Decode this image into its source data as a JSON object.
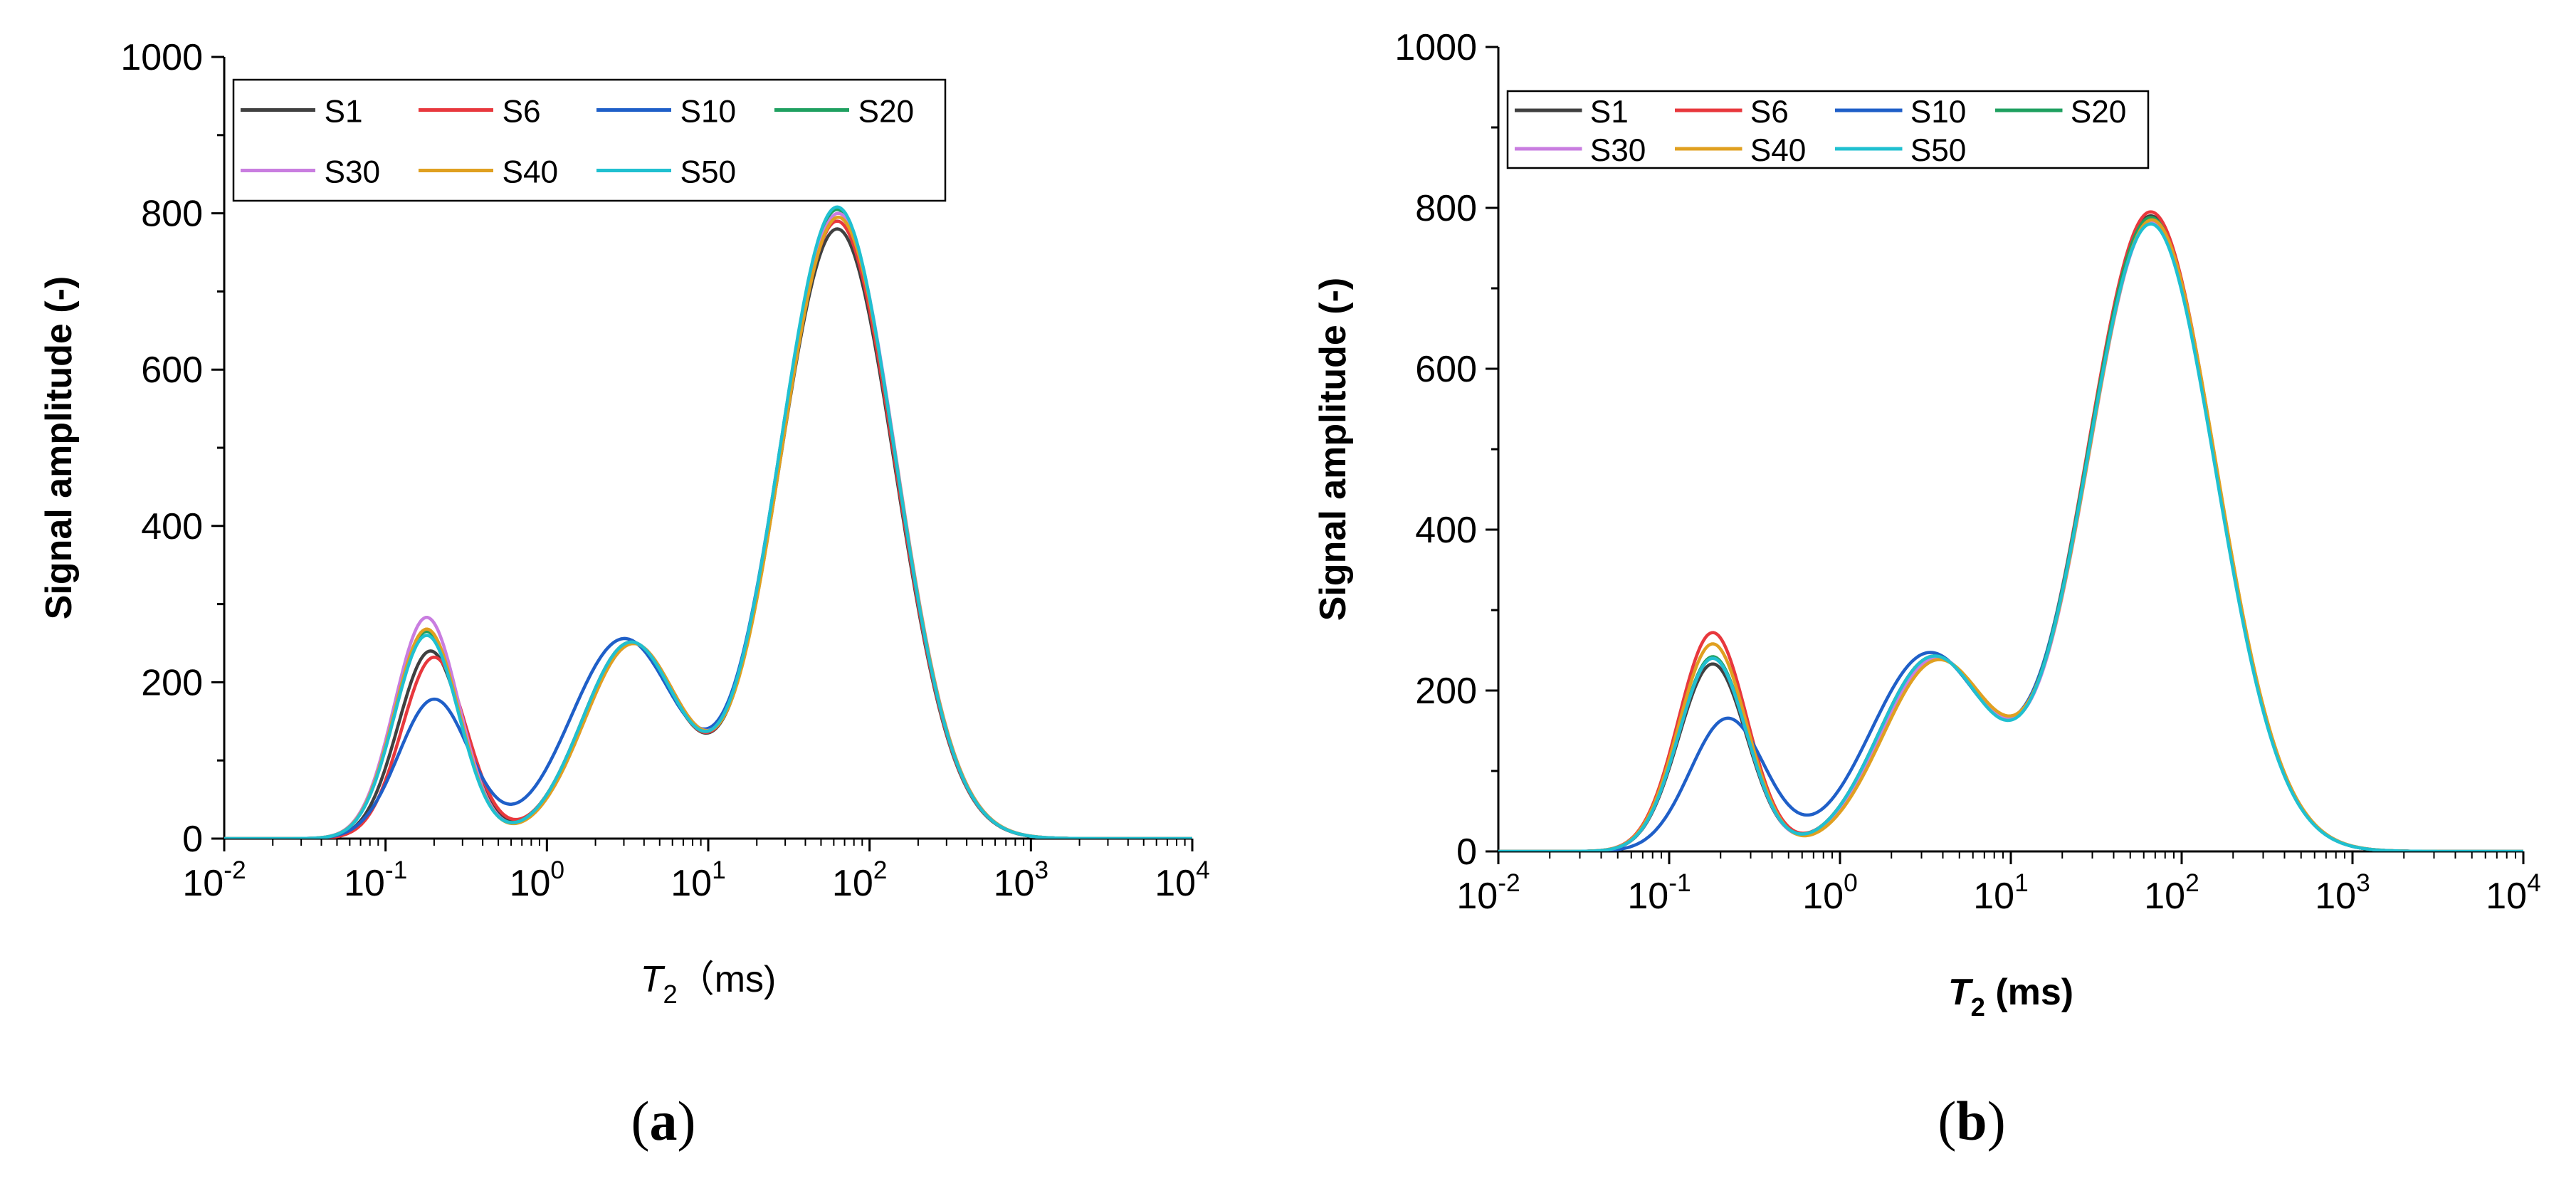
{
  "chart_data": [
    {
      "type": "line",
      "panel": "(a)",
      "caption_letter": "a",
      "xscale": "log",
      "xlim": [
        0.01,
        10000
      ],
      "ylim": [
        0,
        1000
      ],
      "x_ticks": [
        0.01,
        0.1,
        1,
        10,
        100,
        1000,
        10000
      ],
      "x_tick_labels": [
        [
          "10",
          "-2"
        ],
        [
          "10",
          "-1"
        ],
        [
          "10",
          "0"
        ],
        [
          "10",
          "1"
        ],
        [
          "10",
          "2"
        ],
        [
          "10",
          "3"
        ],
        [
          "10",
          "4"
        ]
      ],
      "y_ticks": [
        0,
        200,
        400,
        600,
        800,
        1000
      ],
      "y_tick_labels": [
        "0",
        "200",
        "400",
        "600",
        "800",
        "1000"
      ],
      "ylabel": "Signal amplitude (-)",
      "xlabel_symbol": "T",
      "xlabel_sub": "2",
      "xlabel_unit": "（ms)",
      "xlabel_bold": false,
      "legend_position": "top-left",
      "series": [
        {
          "name": "S1",
          "color": "#404040",
          "p1": {
            "amp": 240,
            "mu": 0.19,
            "s": 0.2
          },
          "p2": {
            "amp": 250,
            "mu": 3.3,
            "s": 0.3
          },
          "p3": {
            "amp": 780,
            "mu": 63,
            "s": 0.36
          }
        },
        {
          "name": "S6",
          "color": "#e8383d",
          "p1": {
            "amp": 232,
            "mu": 0.2,
            "s": 0.2
          },
          "p2": {
            "amp": 250,
            "mu": 3.3,
            "s": 0.3
          },
          "p3": {
            "amp": 790,
            "mu": 63,
            "s": 0.36
          }
        },
        {
          "name": "S10",
          "color": "#1f5fc8",
          "p1": {
            "amp": 178,
            "mu": 0.2,
            "s": 0.22
          },
          "p2": {
            "amp": 255,
            "mu": 3.0,
            "s": 0.33
          },
          "p3": {
            "amp": 805,
            "mu": 63,
            "s": 0.36
          }
        },
        {
          "name": "S20",
          "color": "#1fa060",
          "p1": {
            "amp": 265,
            "mu": 0.18,
            "s": 0.2
          },
          "p2": {
            "amp": 250,
            "mu": 3.3,
            "s": 0.3
          },
          "p3": {
            "amp": 805,
            "mu": 63,
            "s": 0.36
          }
        },
        {
          "name": "S30",
          "color": "#c97de0",
          "p1": {
            "amp": 283,
            "mu": 0.18,
            "s": 0.2
          },
          "p2": {
            "amp": 248,
            "mu": 3.4,
            "s": 0.3
          },
          "p3": {
            "amp": 800,
            "mu": 64,
            "s": 0.36
          }
        },
        {
          "name": "S40",
          "color": "#e0a020",
          "p1": {
            "amp": 268,
            "mu": 0.18,
            "s": 0.2
          },
          "p2": {
            "amp": 248,
            "mu": 3.4,
            "s": 0.3
          },
          "p3": {
            "amp": 795,
            "mu": 64,
            "s": 0.36
          }
        },
        {
          "name": "S50",
          "color": "#20c0d0",
          "p1": {
            "amp": 260,
            "mu": 0.18,
            "s": 0.2
          },
          "p2": {
            "amp": 250,
            "mu": 3.3,
            "s": 0.3
          },
          "p3": {
            "amp": 808,
            "mu": 63,
            "s": 0.36
          }
        }
      ]
    },
    {
      "type": "line",
      "panel": "(b)",
      "caption_letter": "b",
      "xscale": "log",
      "xlim": [
        0.01,
        10000
      ],
      "ylim": [
        0,
        1000
      ],
      "x_ticks": [
        0.01,
        0.1,
        1,
        10,
        100,
        1000,
        10000
      ],
      "x_tick_labels": [
        [
          "10",
          "-2"
        ],
        [
          "10",
          "-1"
        ],
        [
          "10",
          "0"
        ],
        [
          "10",
          "1"
        ],
        [
          "10",
          "2"
        ],
        [
          "10",
          "3"
        ],
        [
          "10",
          "4"
        ]
      ],
      "y_ticks": [
        0,
        200,
        400,
        600,
        800,
        1000
      ],
      "y_tick_labels": [
        "0",
        "200",
        "400",
        "600",
        "800",
        "1000"
      ],
      "ylabel": "Signal amplitude (-)",
      "xlabel_symbol": "T",
      "xlabel_sub": "2",
      "xlabel_unit": " (ms)",
      "xlabel_bold": true,
      "legend_position": "top-left",
      "series": [
        {
          "name": "S1",
          "color": "#404040",
          "p1": {
            "amp": 233,
            "mu": 0.18,
            "s": 0.2
          },
          "p2": {
            "amp": 240,
            "mu": 3.5,
            "s": 0.32
          },
          "p3": {
            "amp": 790,
            "mu": 66,
            "s": 0.38
          }
        },
        {
          "name": "S6",
          "color": "#e8383d",
          "p1": {
            "amp": 272,
            "mu": 0.18,
            "s": 0.2
          },
          "p2": {
            "amp": 240,
            "mu": 3.5,
            "s": 0.32
          },
          "p3": {
            "amp": 795,
            "mu": 66,
            "s": 0.38
          }
        },
        {
          "name": "S10",
          "color": "#1f5fc8",
          "p1": {
            "amp": 165,
            "mu": 0.22,
            "s": 0.22
          },
          "p2": {
            "amp": 245,
            "mu": 3.3,
            "s": 0.34
          },
          "p3": {
            "amp": 785,
            "mu": 66,
            "s": 0.38
          }
        },
        {
          "name": "S20",
          "color": "#1fa060",
          "p1": {
            "amp": 242,
            "mu": 0.18,
            "s": 0.2
          },
          "p2": {
            "amp": 240,
            "mu": 3.5,
            "s": 0.32
          },
          "p3": {
            "amp": 788,
            "mu": 66,
            "s": 0.38
          }
        },
        {
          "name": "S30",
          "color": "#c97de0",
          "p1": {
            "amp": 240,
            "mu": 0.18,
            "s": 0.2
          },
          "p2": {
            "amp": 238,
            "mu": 3.6,
            "s": 0.32
          },
          "p3": {
            "amp": 783,
            "mu": 67,
            "s": 0.38
          }
        },
        {
          "name": "S40",
          "color": "#e0a020",
          "p1": {
            "amp": 258,
            "mu": 0.18,
            "s": 0.2
          },
          "p2": {
            "amp": 235,
            "mu": 3.7,
            "s": 0.32
          },
          "p3": {
            "amp": 785,
            "mu": 67,
            "s": 0.38
          }
        },
        {
          "name": "S50",
          "color": "#20c0d0",
          "p1": {
            "amp": 240,
            "mu": 0.18,
            "s": 0.2
          },
          "p2": {
            "amp": 240,
            "mu": 3.5,
            "s": 0.32
          },
          "p3": {
            "amp": 780,
            "mu": 66,
            "s": 0.38
          }
        }
      ]
    }
  ]
}
